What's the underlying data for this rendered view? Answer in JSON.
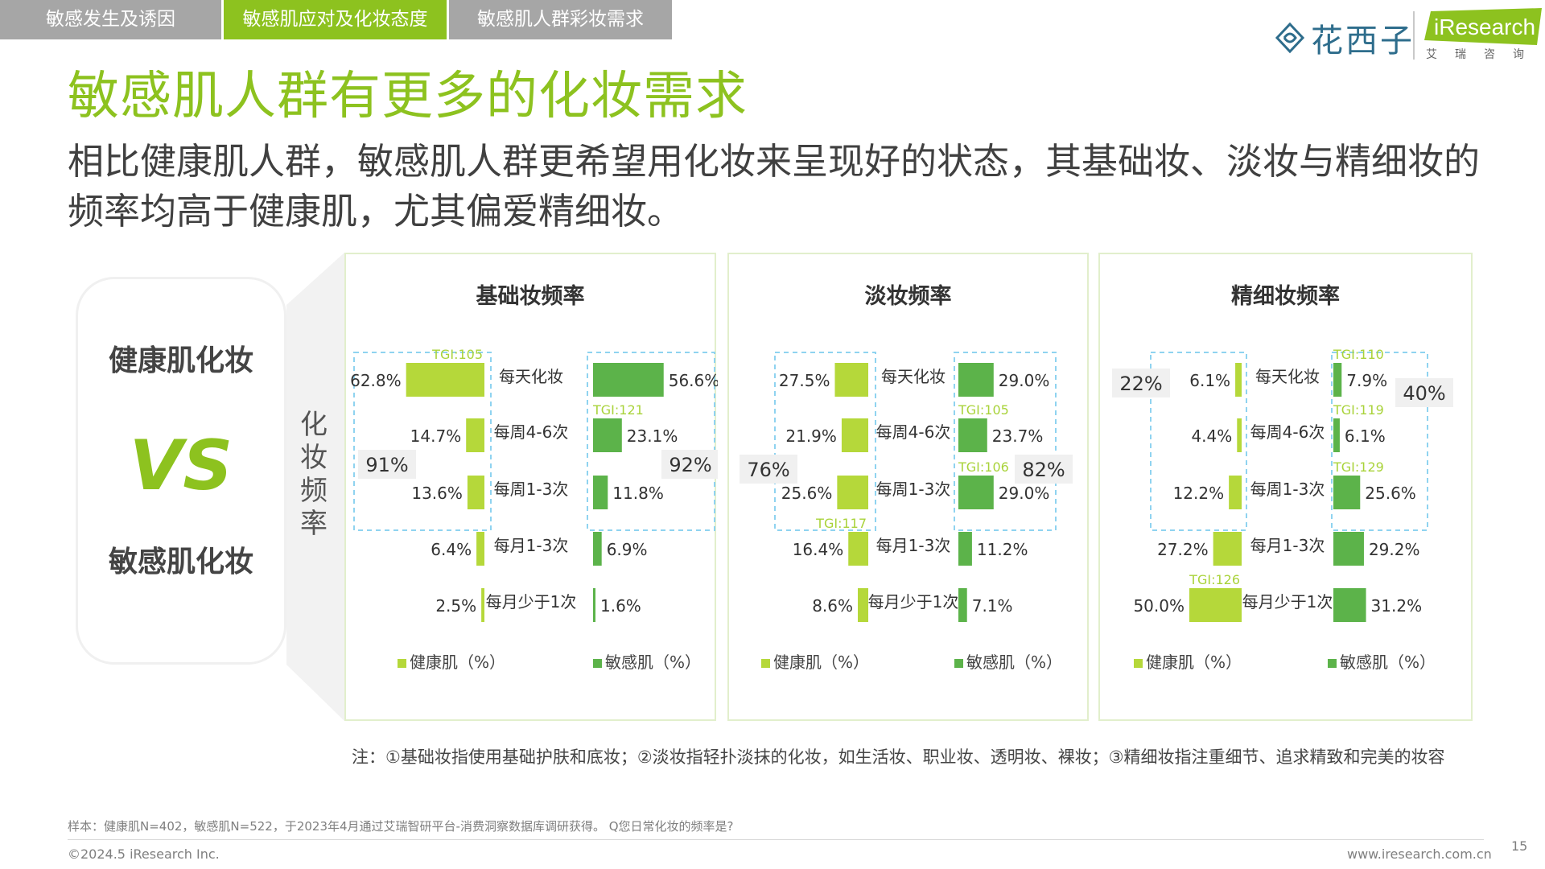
{
  "tabs": [
    {
      "label": "敏感发生及诱因",
      "active": false
    },
    {
      "label": "敏感肌应对及化妆态度",
      "active": true
    },
    {
      "label": "敏感肌人群彩妆需求",
      "active": false
    }
  ],
  "logos": {
    "huaxizi": "花西子",
    "iresearch_word": "iResearch",
    "iresearch_sub": "艾瑞咨询"
  },
  "title": "敏感肌人群有更多的化妆需求",
  "subtitle": "相比健康肌人群，敏感肌人群更希望用化妆来呈现好的状态，其基础妆、淡妆与精细妆的频率均高于健康肌，尤其偏爱精细妆。",
  "compare": {
    "top": "健康肌化妆",
    "vs": "VS",
    "bottom": "敏感肌化妆"
  },
  "side_label": "化妆频率",
  "colors": {
    "healthy": "#b5d83a",
    "sensitive": "#5cb34a",
    "tgi": "#a9d33a",
    "box_border": "#8fd3f0",
    "accent": "#8dc21f"
  },
  "chart_data": [
    {
      "type": "bar",
      "title": "基础妆频率",
      "categories": [
        "每天化妆",
        "每周4-6次",
        "每周1-3次",
        "每月1-3次",
        "每月少于1次"
      ],
      "series": [
        {
          "name": "健康肌（%）",
          "values": [
            62.8,
            14.7,
            13.6,
            6.4,
            2.5
          ]
        },
        {
          "name": "敏感肌（%）",
          "values": [
            56.6,
            23.1,
            11.8,
            6.9,
            1.6
          ]
        }
      ],
      "value_labels": {
        "healthy": [
          "62.8%",
          "14.7%",
          "13.6%",
          "6.4%",
          "2.5%"
        ],
        "sensitive": [
          "56.6%",
          "23.1%",
          "11.8%",
          "6.9%",
          "1.6%"
        ]
      },
      "tgi": {
        "healthy": [
          "TGI:105",
          "",
          "",
          "",
          ""
        ],
        "sensitive": [
          "",
          "TGI:121",
          "",
          "",
          ""
        ]
      },
      "box_rows": 3,
      "totals": {
        "healthy": "91%",
        "sensitive": "92%"
      }
    },
    {
      "type": "bar",
      "title": "淡妆频率",
      "categories": [
        "每天化妆",
        "每周4-6次",
        "每周1-3次",
        "每月1-3次",
        "每月少于1次"
      ],
      "series": [
        {
          "name": "健康肌（%）",
          "values": [
            27.5,
            21.9,
            25.6,
            16.4,
            8.6
          ]
        },
        {
          "name": "敏感肌（%）",
          "values": [
            29.0,
            23.7,
            29.0,
            11.2,
            7.1
          ]
        }
      ],
      "value_labels": {
        "healthy": [
          "27.5%",
          "21.9%",
          "25.6%",
          "16.4%",
          "8.6%"
        ],
        "sensitive": [
          "29.0%",
          "23.7%",
          "29.0%",
          "11.2%",
          "7.1%"
        ]
      },
      "tgi": {
        "healthy": [
          "",
          "",
          "",
          "TGI:117",
          ""
        ],
        "sensitive": [
          "",
          "TGI:105",
          "TGI:106",
          "",
          ""
        ]
      },
      "box_rows": 3,
      "totals": {
        "healthy": "76%",
        "sensitive": "82%"
      }
    },
    {
      "type": "bar",
      "title": "精细妆频率",
      "categories": [
        "每天化妆",
        "每周4-6次",
        "每周1-3次",
        "每月1-3次",
        "每月少于1次"
      ],
      "series": [
        {
          "name": "健康肌（%）",
          "values": [
            6.1,
            4.4,
            12.2,
            27.2,
            50.0
          ]
        },
        {
          "name": "敏感肌（%）",
          "values": [
            7.9,
            6.1,
            25.6,
            29.2,
            31.2
          ]
        }
      ],
      "value_labels": {
        "healthy": [
          "6.1%",
          "4.4%",
          "12.2%",
          "27.2%",
          "50.0%"
        ],
        "sensitive": [
          "7.9%",
          "6.1%",
          "25.6%",
          "29.2%",
          "31.2%"
        ]
      },
      "tgi": {
        "healthy": [
          "",
          "",
          "",
          "",
          "TGI:126"
        ],
        "sensitive": [
          "TGI:110",
          "TGI:119",
          "TGI:129",
          "",
          ""
        ]
      },
      "box_rows": 3,
      "totals": {
        "healthy": "22%",
        "sensitive": "40%"
      }
    }
  ],
  "note": "注：①基础妆指使用基础护肤和底妆；②淡妆指轻扑淡抹的化妆，如生活妆、职业妆、透明妆、裸妆；③精细妆指注重细节、追求精致和完美的妆容",
  "footer": {
    "sample": "样本：健康肌N=402，敏感肌N=522，于2023年4月通过艾瑞智研平台-消费洞察数据库调研获得。 Q您日常化妆的频率是?",
    "copyright": "©2024.5 iResearch Inc.",
    "website": "www.iresearch.com.cn",
    "page": "15"
  }
}
